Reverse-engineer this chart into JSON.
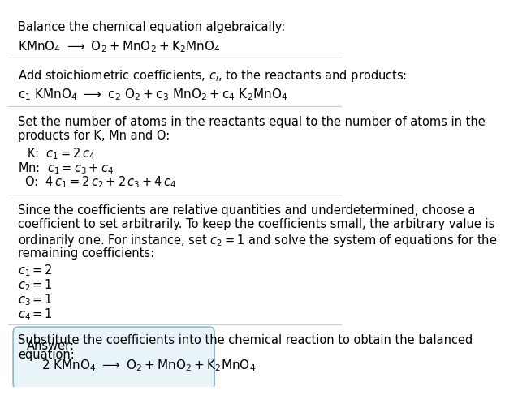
{
  "bg_color": "#ffffff",
  "fig_width": 5.29,
  "fig_height": 6.07,
  "fs": 10.5,
  "math_fs": 11,
  "line_color": "#cccccc",
  "line_width": 0.8,
  "text_color": "black",
  "answer_box_color": "#e8f4f8",
  "answer_box_border": "#88bbcc",
  "section1": {
    "title": "Balance the chemical equation algebraically:",
    "eq": "$\\mathrm{KMnO_4 \\ \\longrightarrow \\ O_2 + MnO_2 + K_2MnO_4}$"
  },
  "section2": {
    "title": "Add stoichiometric coefficients, $c_i$, to the reactants and products:",
    "eq": "$\\mathrm{c_1 \\ KMnO_4 \\ \\longrightarrow \\ c_2 \\ O_2 + c_3 \\ MnO_2 + c_4 \\ K_2MnO_4}$"
  },
  "section3": {
    "line1": "Set the number of atoms in the reactants equal to the number of atoms in the",
    "line2": "products for K, Mn and O:",
    "k_eq": "$\\mathrm{K}$:  $c_1 = 2\\,c_4$",
    "mn_eq": "$\\mathrm{Mn}$:  $c_1 = c_3 + c_4$",
    "o_eq": "$\\mathrm{O}$:  $4\\,c_1 = 2\\,c_2 + 2\\,c_3 + 4\\,c_4$"
  },
  "section4": {
    "line1": "Since the coefficients are relative quantities and underdetermined, choose a",
    "line2": "coefficient to set arbitrarily. To keep the coefficients small, the arbitrary value is",
    "line3": "ordinarily one. For instance, set $c_2 = 1$ and solve the system of equations for the",
    "line4": "remaining coefficients:",
    "c1": "$c_1 = 2$",
    "c2": "$c_2 = 1$",
    "c3": "$c_3 = 1$",
    "c4": "$c_4 = 1$"
  },
  "section5": {
    "line1": "Substitute the coefficients into the chemical reaction to obtain the balanced",
    "line2": "equation:",
    "answer_label": "Answer:",
    "answer_eq": "$\\mathrm{2 \\ KMnO_4 \\ \\longrightarrow \\ O_2 + MnO_2 + K_2MnO_4}$"
  }
}
